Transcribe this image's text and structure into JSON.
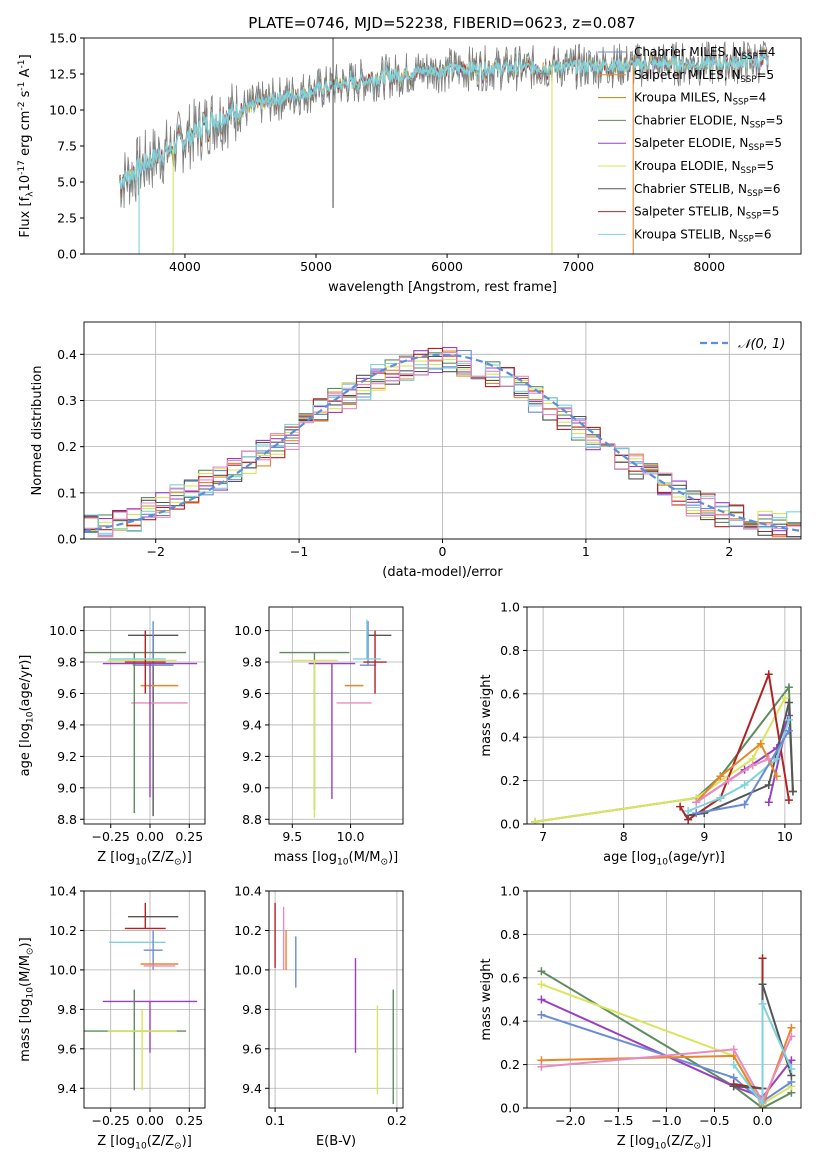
{
  "figure": {
    "title": "PLATE=0746, MJD=52238, FIBERID=0623, z=0.087"
  },
  "colors": {
    "Chabrier MILES": "#6b8bd6",
    "Salpeter MILES": "#e8872a",
    "Kroupa MILES": "#b8860b",
    "Chabrier ELODIE": "#5e8c5e",
    "Salpeter ELODIE": "#9a3fc0",
    "Kroupa ELODIE": "#d9e65c",
    "Chabrier STELIB": "#555555",
    "Salpeter STELIB": "#b22222",
    "Kroupa STELIB": "#7fd3dc",
    "pink": "#e88cc0",
    "normal_curve": "#5b8fd9"
  },
  "chart_data": [
    {
      "id": "spectrum",
      "type": "line",
      "title": "PLATE=0746, MJD=52238, FIBERID=0623, z=0.087",
      "xlabel": "wavelength [Angstrom, rest frame]",
      "ylabel": "Flux [f$_\\lambda$10$^{-17}$ erg cm$^{-2}$ s$^{-1}$ A$^{-1}$]",
      "xlim": [
        3230,
        8700
      ],
      "ylim": [
        0,
        15
      ],
      "xticks": [
        4000,
        5000,
        6000,
        7000,
        8000
      ],
      "yticks": [
        0.0,
        2.5,
        5.0,
        7.5,
        10.0,
        12.5,
        15.0
      ],
      "legend_position": "right",
      "legend": [
        {
          "label": "Chabrier MILES, N",
          "sub": "SSP",
          "suffix": "=4"
        },
        {
          "label": "Salpeter MILES, N",
          "sub": "SSP",
          "suffix": "=5"
        },
        {
          "label": "Kroupa MILES, N",
          "sub": "SSP",
          "suffix": "=4"
        },
        {
          "label": "Chabrier ELODIE, N",
          "sub": "SSP",
          "suffix": "=5"
        },
        {
          "label": "Salpeter ELODIE, N",
          "sub": "SSP",
          "suffix": "=5"
        },
        {
          "label": "Kroupa ELODIE, N",
          "sub": "SSP",
          "suffix": "=5"
        },
        {
          "label": "Chabrier STELIB, N",
          "sub": "SSP",
          "suffix": "=6"
        },
        {
          "label": "Salpeter STELIB, N",
          "sub": "SSP",
          "suffix": "=5"
        },
        {
          "label": "Kroupa STELIB, N",
          "sub": "SSP",
          "suffix": "=6"
        }
      ],
      "continuum": {
        "x": [
          3500,
          3600,
          3700,
          3800,
          3900,
          4000,
          4100,
          4200,
          4400,
          4600,
          4800,
          5000,
          5200,
          5400,
          5600,
          5800,
          6000,
          6200,
          6400,
          6600,
          6800,
          7000,
          7200,
          7400,
          7600,
          7800,
          8000,
          8200,
          8400
        ],
        "y": [
          5.0,
          5.6,
          6.3,
          6.9,
          7.3,
          8.0,
          8.6,
          9.3,
          9.9,
          10.5,
          11.0,
          11.4,
          11.8,
          12.1,
          12.4,
          12.7,
          12.8,
          12.9,
          12.9,
          12.9,
          13.0,
          13.0,
          13.1,
          13.1,
          13.2,
          13.2,
          13.2,
          13.3,
          13.4
        ]
      },
      "spikes": [
        {
          "x": 3650,
          "y": 0.0
        },
        {
          "x": 3910,
          "y": 0.0
        },
        {
          "x": 5130,
          "y": 15.0
        },
        {
          "x": 5130,
          "y": 3.2
        },
        {
          "x": 6800,
          "y": 0.0
        },
        {
          "x": 7420,
          "y": 0.0
        }
      ]
    },
    {
      "id": "residuals",
      "type": "line",
      "xlabel": "(data-model)/error",
      "ylabel": "Normed distribution",
      "xlim": [
        -2.5,
        2.5
      ],
      "ylim": [
        0,
        0.47
      ],
      "xticks": [
        -2,
        -1,
        0,
        1,
        2
      ],
      "yticks": [
        0.0,
        0.1,
        0.2,
        0.3,
        0.4
      ],
      "grid": true,
      "legend_position": "top-right",
      "legend": [
        {
          "label": "𝒩(0, 1)"
        }
      ],
      "bins": {
        "start": -2.5,
        "width": 0.1,
        "count": 50
      },
      "base_values": [
        0.03,
        0.03,
        0.035,
        0.045,
        0.06,
        0.075,
        0.09,
        0.1,
        0.12,
        0.135,
        0.15,
        0.17,
        0.185,
        0.2,
        0.22,
        0.25,
        0.28,
        0.3,
        0.31,
        0.33,
        0.35,
        0.36,
        0.37,
        0.38,
        0.39,
        0.39,
        0.38,
        0.37,
        0.36,
        0.35,
        0.33,
        0.3,
        0.28,
        0.26,
        0.24,
        0.22,
        0.2,
        0.18,
        0.16,
        0.14,
        0.12,
        0.1,
        0.08,
        0.07,
        0.055,
        0.045,
        0.04,
        0.035,
        0.03,
        0.03
      ],
      "series_colors": [
        "#6b8bd6",
        "#e8872a",
        "#5e8c5e",
        "#9a3fc0",
        "#d9e65c",
        "#555555",
        "#b22222",
        "#7fd3dc",
        "#e88cc0"
      ]
    },
    {
      "id": "age-vs-Z",
      "type": "scatter",
      "xlabel": "Z [log$_{10}$(Z/Z$_\\odot$)]",
      "ylabel": "age  [log$_{10}$(age/yr)]",
      "xlim": [
        -0.42,
        0.35
      ],
      "ylim": [
        8.77,
        10.15
      ],
      "xticks": [
        -0.25,
        0.0,
        0.25
      ],
      "yticks": [
        8.8,
        9.0,
        9.2,
        9.4,
        9.6,
        9.8,
        10.0
      ],
      "grid": true,
      "points": [
        {
          "color": "#555555",
          "x": 0.02,
          "xerr": 0.16,
          "y": 9.97,
          "yerr": [
            1.15,
            0.0
          ]
        },
        {
          "color": "#6b8bd6",
          "x": 0.02,
          "xerr": 0.13,
          "y": 9.78,
          "yerr": [
            0.0,
            0.28
          ]
        },
        {
          "color": "#e8872a",
          "x": 0.06,
          "xerr": 0.12,
          "y": 9.65,
          "yerr": [
            0.0,
            0.0
          ]
        },
        {
          "color": "#e88cc0",
          "x": 0.06,
          "xerr": 0.18,
          "y": 9.54,
          "yerr": [
            0.0,
            0.0
          ]
        },
        {
          "color": "#5e8c5e",
          "x": -0.1,
          "xerr": 0.33,
          "y": 9.86,
          "yerr": [
            1.02,
            0.0
          ]
        },
        {
          "color": "#9a3fc0",
          "x": 0.0,
          "xerr": 0.3,
          "y": 9.79,
          "yerr": [
            0.85,
            0.0
          ]
        },
        {
          "color": "#d9e65c",
          "x": -0.05,
          "xerr": 0.22,
          "y": 9.81,
          "yerr": [
            0.0,
            0.0
          ]
        },
        {
          "color": "#b22222",
          "x": -0.03,
          "xerr": 0.13,
          "y": 9.8,
          "yerr": [
            0.2,
            0.2
          ]
        },
        {
          "color": "#7fd3dc",
          "x": -0.08,
          "xerr": 0.18,
          "y": 9.82,
          "yerr": [
            0.0,
            0.0
          ]
        }
      ]
    },
    {
      "id": "age-vs-mass",
      "type": "scatter",
      "xlabel": "mass [log$_{10}$(M/M$_\\odot$)]",
      "ylabel": "",
      "xlim": [
        9.3,
        10.45
      ],
      "ylim": [
        8.77,
        10.15
      ],
      "xticks": [
        9.5,
        10.0
      ],
      "yticks": [
        8.8,
        9.0,
        9.2,
        9.4,
        9.6,
        9.8,
        10.0
      ],
      "grid": true,
      "points": [
        {
          "color": "#555555",
          "x": 10.25,
          "xerr": 0.1,
          "y": 9.97,
          "yerr": [
            0.0,
            0.0
          ]
        },
        {
          "color": "#6b8bd6",
          "x": 10.15,
          "xerr": 0.07,
          "y": 9.78,
          "yerr": [
            0.0,
            0.28
          ]
        },
        {
          "color": "#e8872a",
          "x": 10.03,
          "xerr": 0.08,
          "y": 9.65,
          "yerr": [
            0.0,
            0.0
          ]
        },
        {
          "color": "#e88cc0",
          "x": 10.03,
          "xerr": 0.15,
          "y": 9.54,
          "yerr": [
            0.0,
            0.0
          ]
        },
        {
          "color": "#5e8c5e",
          "x": 9.69,
          "xerr": 0.3,
          "y": 9.86,
          "yerr": [
            1.0,
            0.0
          ]
        },
        {
          "color": "#9a3fc0",
          "x": 9.84,
          "xerr": 0.2,
          "y": 9.79,
          "yerr": [
            0.86,
            0.0
          ]
        },
        {
          "color": "#d9e65c",
          "x": 9.69,
          "xerr": 0.2,
          "y": 9.81,
          "yerr": [
            1.0,
            0.0
          ]
        },
        {
          "color": "#b22222",
          "x": 10.21,
          "xerr": 0.1,
          "y": 9.8,
          "yerr": [
            0.2,
            0.2
          ]
        },
        {
          "color": "#7fd3dc",
          "x": 10.14,
          "xerr": 0.12,
          "y": 9.82,
          "yerr": [
            0.0,
            0.25
          ]
        }
      ]
    },
    {
      "id": "massweight-vs-age",
      "type": "line",
      "xlabel": "age  [log$_{10}$(age/yr)]",
      "ylabel": "mass weight",
      "xlim": [
        6.8,
        10.2
      ],
      "ylim": [
        0,
        1
      ],
      "xticks": [
        7,
        8,
        9,
        10
      ],
      "yticks": [
        0.0,
        0.2,
        0.4,
        0.6,
        0.8,
        1.0
      ],
      "grid": true,
      "series": [
        {
          "color": "#5e8c5e",
          "x": [
            6.9,
            8.9,
            9.2,
            10.05,
            10.1
          ],
          "y": [
            0.01,
            0.12,
            0.22,
            0.63,
            0.15
          ]
        },
        {
          "color": "#d9e65c",
          "x": [
            6.9,
            8.9,
            9.6,
            10.0
          ],
          "y": [
            0.01,
            0.12,
            0.3,
            0.58
          ]
        },
        {
          "color": "#9a3fc0",
          "x": [
            8.9,
            9.5,
            9.9,
            10.05,
            9.8
          ],
          "y": [
            0.1,
            0.25,
            0.35,
            0.5,
            0.1
          ]
        },
        {
          "color": "#b22222",
          "x": [
            8.7,
            8.8,
            9.2,
            9.8,
            10.05
          ],
          "y": [
            0.08,
            0.02,
            0.12,
            0.69,
            0.11
          ]
        },
        {
          "color": "#555555",
          "x": [
            8.8,
            9.0,
            9.8,
            10.05,
            10.1
          ],
          "y": [
            0.04,
            0.05,
            0.18,
            0.56,
            0.15
          ]
        },
        {
          "color": "#7fd3dc",
          "x": [
            8.8,
            9.2,
            9.5,
            9.9,
            10.05
          ],
          "y": [
            0.06,
            0.12,
            0.18,
            0.3,
            0.48
          ]
        },
        {
          "color": "#6b8bd6",
          "x": [
            8.9,
            9.5,
            10.05
          ],
          "y": [
            0.05,
            0.09,
            0.43
          ]
        },
        {
          "color": "#e8872a",
          "x": [
            8.9,
            9.2,
            9.7,
            9.9
          ],
          "y": [
            0.1,
            0.22,
            0.37,
            0.22
          ]
        },
        {
          "color": "#e88cc0",
          "x": [
            8.9,
            9.3,
            9.6,
            9.8
          ],
          "y": [
            0.1,
            0.2,
            0.27,
            0.3
          ]
        }
      ]
    },
    {
      "id": "mass-vs-Z",
      "type": "scatter",
      "xlabel": "Z [log$_{10}$(Z/Z$_\\odot$)]",
      "ylabel": "mass [log$_{10}$(M/M$_\\odot$)]",
      "xlim": [
        -0.42,
        0.35
      ],
      "ylim": [
        9.3,
        10.4
      ],
      "xticks": [
        -0.25,
        0.0,
        0.25
      ],
      "yticks": [
        9.4,
        9.6,
        9.8,
        10.0,
        10.2,
        10.4
      ],
      "grid": true,
      "points": [
        {
          "color": "#555555",
          "x": 0.02,
          "xerr": 0.16,
          "y": 10.27,
          "yerr": [
            0.0,
            0.0
          ]
        },
        {
          "color": "#b22222",
          "x": -0.03,
          "xerr": 0.13,
          "y": 10.21,
          "yerr": [
            0.0,
            0.13
          ]
        },
        {
          "color": "#7fd3dc",
          "x": -0.08,
          "xerr": 0.18,
          "y": 10.14,
          "yerr": [
            0.0,
            0.0
          ]
        },
        {
          "color": "#6b8bd6",
          "x": 0.02,
          "xerr": 0.06,
          "y": 10.1,
          "yerr": [
            0.1,
            0.1
          ]
        },
        {
          "color": "#e8872a",
          "x": 0.06,
          "xerr": 0.12,
          "y": 10.03,
          "yerr": [
            0.0,
            0.0
          ]
        },
        {
          "color": "#e88cc0",
          "x": 0.06,
          "xerr": 0.1,
          "y": 10.02,
          "yerr": [
            0.0,
            0.0
          ]
        },
        {
          "color": "#9a3fc0",
          "x": 0.0,
          "xerr": 0.3,
          "y": 9.84,
          "yerr": [
            0.26,
            0.0
          ]
        },
        {
          "color": "#5e8c5e",
          "x": -0.1,
          "xerr": 0.33,
          "y": 9.69,
          "yerr": [
            0.3,
            0.21
          ]
        },
        {
          "color": "#d9e65c",
          "x": -0.05,
          "xerr": 0.22,
          "y": 9.69,
          "yerr": [
            0.3,
            0.11
          ]
        }
      ]
    },
    {
      "id": "mass-vs-ebv",
      "type": "scatter",
      "xlabel": "E(B-V)",
      "ylabel": "",
      "xlim": [
        0.095,
        0.205
      ],
      "ylim": [
        9.3,
        10.4
      ],
      "xticks": [
        0.1,
        0.2
      ],
      "yticks": [
        9.4,
        9.6,
        9.8,
        10.0,
        10.2,
        10.4
      ],
      "grid": true,
      "points": [
        {
          "color": "#b22222",
          "x": 0.1,
          "y": 10.21,
          "yerr": [
            0.2,
            0.13
          ]
        },
        {
          "color": "#e88cc0",
          "x": 0.107,
          "y": 10.2,
          "yerr": [
            0.2,
            0.12
          ]
        },
        {
          "color": "#e8872a",
          "x": 0.109,
          "y": 10.1,
          "yerr": [
            0.1,
            0.1
          ]
        },
        {
          "color": "#6b8bd6",
          "x": 0.117,
          "y": 10.04,
          "yerr": [
            0.13,
            0.13
          ]
        },
        {
          "color": "#9a3fc0",
          "x": 0.166,
          "y": 9.84,
          "yerr": [
            0.26,
            0.22
          ]
        },
        {
          "color": "#d9e65c",
          "x": 0.184,
          "y": 9.62,
          "yerr": [
            0.25,
            0.2
          ]
        },
        {
          "color": "#5e8c5e",
          "x": 0.197,
          "y": 9.62,
          "yerr": [
            0.3,
            0.28
          ]
        }
      ]
    },
    {
      "id": "massweight-vs-Z",
      "type": "line",
      "xlabel": "Z [log$_{10}$(Z/Z$_\\odot$)]",
      "ylabel": "mass weight",
      "xlim": [
        -2.45,
        0.4
      ],
      "ylim": [
        0,
        1
      ],
      "xticks": [
        -2.0,
        -1.5,
        -1.0,
        -0.5,
        0.0
      ],
      "yticks": [
        0.0,
        0.2,
        0.4,
        0.6,
        0.8,
        1.0
      ],
      "grid": true,
      "series": [
        {
          "color": "#5e8c5e",
          "x": [
            -2.3,
            -0.3,
            0.0,
            0.3
          ],
          "y": [
            0.63,
            0.1,
            0.0,
            0.07
          ]
        },
        {
          "color": "#d9e65c",
          "x": [
            -2.3,
            -0.3,
            0.0,
            0.3
          ],
          "y": [
            0.57,
            0.24,
            0.02,
            0.1
          ]
        },
        {
          "color": "#9a3fc0",
          "x": [
            -2.3,
            -0.3,
            0.0,
            0.3
          ],
          "y": [
            0.5,
            0.1,
            0.05,
            0.22
          ]
        },
        {
          "color": "#6b8bd6",
          "x": [
            -2.3,
            -0.3,
            0.0,
            0.3
          ],
          "y": [
            0.43,
            0.14,
            0.03,
            0.12
          ]
        },
        {
          "color": "#e8872a",
          "x": [
            -2.3,
            -0.3,
            0.0,
            0.3
          ],
          "y": [
            0.22,
            0.24,
            0.01,
            0.37
          ]
        },
        {
          "color": "#e88cc0",
          "x": [
            -2.3,
            -0.3,
            0.0,
            0.3
          ],
          "y": [
            0.19,
            0.27,
            0.03,
            0.33
          ]
        },
        {
          "color": "#b22222",
          "x": [
            -0.3,
            0.0,
            0.0
          ],
          "y": [
            0.11,
            0.09,
            0.69
          ]
        },
        {
          "color": "#555555",
          "x": [
            -0.3,
            0.0,
            0.0,
            0.3
          ],
          "y": [
            0.1,
            0.09,
            0.57,
            0.15
          ]
        },
        {
          "color": "#7fd3dc",
          "x": [
            -0.3,
            0.0,
            0.0,
            0.3
          ],
          "y": [
            0.2,
            0.02,
            0.48,
            0.18
          ]
        }
      ]
    }
  ]
}
